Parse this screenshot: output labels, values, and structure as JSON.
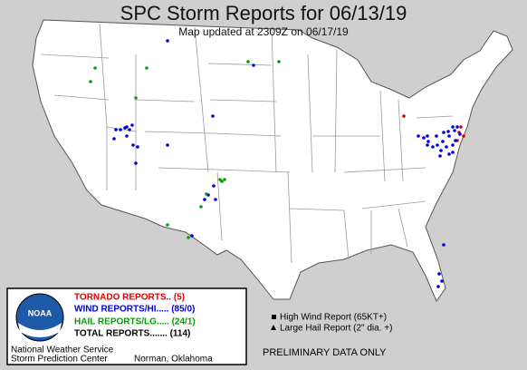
{
  "header": {
    "title": "SPC Storm Reports for 06/13/19",
    "subtitle": "Map updated at 2309Z on 06/17/19"
  },
  "legend": {
    "tornado": "TORNADO REPORTS.. (5)",
    "wind": "WIND REPORTS/HI..... (85/0)",
    "hail": "HAIL REPORTS/LG..... (24/1)",
    "total": "TOTAL REPORTS....... (114)"
  },
  "key": {
    "high_wind": "High Wind Report (65KT+)",
    "large_hail": "Large Hail Report (2\" dia. +)"
  },
  "logo": "NOAA",
  "footer": {
    "preliminary": "PRELIMINARY DATA ONLY",
    "nws": "National Weather Service",
    "spc": "Storm Prediction Center",
    "location": "Norman, Oklahoma"
  }
}
